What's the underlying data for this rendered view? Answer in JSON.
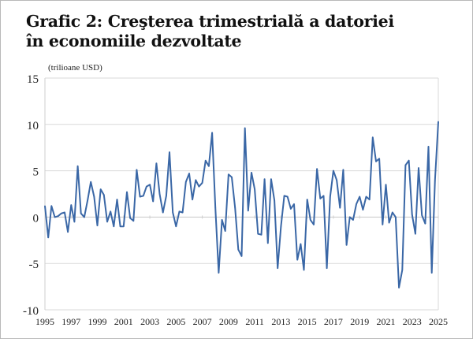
{
  "chart_data": {
    "type": "line",
    "title": "Grafic 2: Creşterea trimestrială a datoriei în economiile dezvoltate",
    "title_lines": [
      "Grafic 2: Creşterea trimestrială a datoriei",
      "în economiile dezvoltate"
    ],
    "ylabel": "(trilioane USD)",
    "xlabel": "",
    "xlim": [
      1995,
      2025
    ],
    "ylim": [
      -10,
      15
    ],
    "x_ticks": [
      "1995",
      "1997",
      "1999",
      "2001",
      "2003",
      "2005",
      "2007",
      "2009",
      "2011",
      "2013",
      "2015",
      "2017",
      "2019",
      "2021",
      "2023",
      "2025"
    ],
    "y_ticks": [
      "15",
      "10",
      "5",
      "0",
      "-5",
      "-10"
    ],
    "grid": "horizontal",
    "line_color": "#3a67a6",
    "x_start": 1995,
    "x_step": 0.25,
    "values": [
      1.2,
      -2.2,
      1.2,
      0.0,
      0.1,
      0.4,
      0.5,
      -1.6,
      1.3,
      -0.5,
      5.5,
      0.4,
      0.0,
      1.8,
      3.8,
      2.2,
      -0.9,
      3.0,
      2.4,
      -0.5,
      0.6,
      -1.0,
      1.9,
      -1.0,
      -1.0,
      2.7,
      -0.1,
      -0.4,
      5.1,
      2.2,
      2.3,
      3.3,
      3.5,
      1.7,
      5.8,
      2.5,
      0.5,
      2.3,
      7.0,
      0.5,
      -1.0,
      0.6,
      0.5,
      3.8,
      4.7,
      1.9,
      4.0,
      3.3,
      3.7,
      6.1,
      5.5,
      9.1,
      1.0,
      -6.0,
      -0.3,
      -1.5,
      4.6,
      4.3,
      1.0,
      -3.5,
      -4.2,
      9.6,
      0.7,
      4.8,
      3.0,
      -1.8,
      -1.9,
      4.1,
      -2.8,
      4.1,
      1.8,
      -5.5,
      -1.0,
      2.3,
      2.2,
      0.9,
      1.4,
      -4.6,
      -2.9,
      -5.7,
      1.9,
      -0.3,
      -0.8,
      5.2,
      2.0,
      2.3,
      -5.5,
      2.2,
      5.0,
      4.0,
      1.0,
      5.1,
      -3.0,
      0.0,
      -0.3,
      1.4,
      2.2,
      0.8,
      2.2,
      1.9,
      8.6,
      6.0,
      6.3,
      -0.8,
      3.5,
      -0.6,
      0.5,
      0.0,
      -7.6,
      -5.7,
      5.6,
      6.1,
      0.3,
      -1.8,
      5.3,
      0.2,
      -0.7,
      7.6,
      -6.0,
      4.0,
      10.3
    ]
  }
}
